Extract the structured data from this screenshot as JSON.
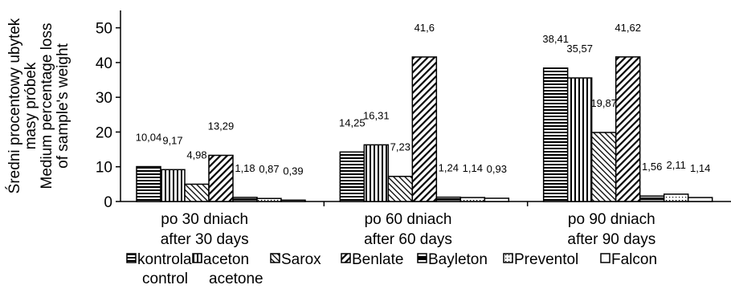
{
  "chart_data": {
    "type": "bar",
    "ylabel": [
      "Średni procentowy ubytek",
      "masy próbek",
      "Medium percentage loss",
      "of sample's weight"
    ],
    "ylim": [
      0,
      55
    ],
    "yticks": [
      0,
      10,
      20,
      30,
      40,
      50
    ],
    "grid": false,
    "legend_position": "bottom",
    "categories": [
      [
        "po 30 dniach",
        "after 30 days"
      ],
      [
        "po 60 dniach",
        "after 60 days"
      ],
      [
        "po 90 dniach",
        "after 90 days"
      ]
    ],
    "series": [
      {
        "name": [
          "kontrola",
          "control"
        ],
        "pattern": "hstripe",
        "values": [
          10.04,
          14.25,
          38.41
        ],
        "labels": [
          "10,04",
          "14,25",
          "38,41"
        ]
      },
      {
        "name": [
          "aceton",
          "acetone"
        ],
        "pattern": "vstripe",
        "values": [
          9.17,
          16.31,
          35.57
        ],
        "labels": [
          "9,17",
          "16,31",
          "35,57"
        ]
      },
      {
        "name": [
          "Sarox"
        ],
        "pattern": "diag-fine",
        "values": [
          4.98,
          7.23,
          19.87
        ],
        "labels": [
          "4,98",
          "7,23",
          "19,87"
        ]
      },
      {
        "name": [
          "Benlate"
        ],
        "pattern": "diag-bold",
        "values": [
          13.29,
          41.6,
          41.62
        ],
        "labels": [
          "13,29",
          "41,6",
          "41,62"
        ]
      },
      {
        "name": [
          "Bayleton"
        ],
        "pattern": "half",
        "values": [
          1.18,
          1.24,
          1.56
        ],
        "labels": [
          "1,18",
          "1,24",
          "1,56"
        ]
      },
      {
        "name": [
          "Preventol"
        ],
        "pattern": "dots",
        "values": [
          0.87,
          1.14,
          2.11
        ],
        "labels": [
          "0,87",
          "1,14",
          "2,11"
        ]
      },
      {
        "name": [
          "Falcon"
        ],
        "pattern": "box",
        "values": [
          0.39,
          0.93,
          1.14
        ],
        "labels": [
          "0,39",
          "0,93",
          "1,14"
        ]
      }
    ]
  }
}
